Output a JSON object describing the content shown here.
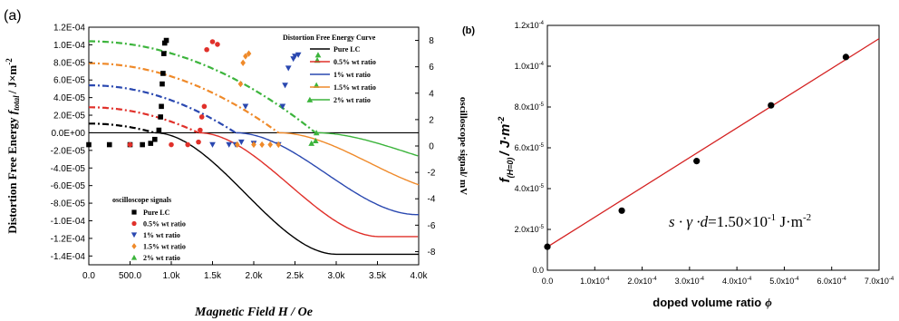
{
  "chart_data": [
    {
      "panel_label": "(a)",
      "type": "line",
      "xlabel": "Magnetic Field H / Oe",
      "ylabel_left_prefix": "Distortion Free Energy ",
      "ylabel_left_symbol": "f",
      "ylabel_left_sub": "total",
      "ylabel_left_unit": "/ J×m",
      "ylabel_left_exp": "-2",
      "ylabel_right": "oscilloscope signal/ mV",
      "xlim": [
        0,
        4000
      ],
      "ylim_left": [
        -0.00015,
        0.00012
      ],
      "ylim_right": [
        -9,
        9
      ],
      "x_ticks": [
        0,
        500,
        1000,
        1500,
        2000,
        2500,
        3000,
        3500,
        4000
      ],
      "x_tick_labels": [
        "0.0",
        "500.0",
        "1.0k",
        "1.5k",
        "2.0k",
        "2.5k",
        "3.0k",
        "3.5k",
        "4.0k"
      ],
      "y_left_ticks": [
        0.00012,
        0.0001,
        8e-05,
        6e-05,
        4e-05,
        2e-05,
        0,
        -2e-05,
        -4e-05,
        -6e-05,
        -8e-05,
        -0.0001,
        -0.00012,
        -0.00014
      ],
      "y_left_tick_labels": [
        "1.2E-04",
        "1.0E-04",
        "8.0E-05",
        "6.0E-05",
        "4.0E-05",
        "2.0E-05",
        "0.0E+00",
        "-2.0E-05",
        "-4.0E-05",
        "-6.0E-05",
        "-8.0E-05",
        "-1.0E-04",
        "-1.2E-04",
        "-1.4E-04"
      ],
      "y_right_ticks": [
        8,
        6,
        4,
        2,
        0,
        -2,
        -4,
        -6,
        -8
      ],
      "y_right_tick_labels": [
        "8",
        "6",
        "4",
        "2",
        "0",
        "-2",
        "-4",
        "-6",
        "-8"
      ],
      "curve_legend_title": "Distortion Free Energy Curve",
      "curve_legend": [
        "Pure LC",
        "0.5% wt ratio",
        "1%   wt ratio",
        "1.5% wt ratio",
        "2%   wt ratio"
      ],
      "scatter_legend_title": "oscilloscope signals",
      "scatter_legend": [
        "Pure LC",
        "0.5% wt ratio",
        "1%   wt ratio",
        "1.5% wt ratio",
        "2%   wt ratio"
      ],
      "series": [
        {
          "name": "Pure LC",
          "color": "#000000",
          "marker": "square",
          "f0": 1.05e-05,
          "hc": 800,
          "fmin": -0.000138,
          "points": [
            [
              0,
              0.1
            ],
            [
              250,
              0.1
            ],
            [
              500,
              0.1
            ],
            [
              650,
              0.1
            ],
            [
              750,
              0.2
            ],
            [
              800,
              0.5
            ],
            [
              850,
              1.2
            ],
            [
              870,
              2.2
            ],
            [
              880,
              3.0
            ],
            [
              890,
              4.7
            ],
            [
              900,
              5.5
            ],
            [
              910,
              7.0
            ],
            [
              920,
              7.8
            ],
            [
              940,
              8.0
            ]
          ]
        },
        {
          "name": "0.5% wt ratio",
          "color": "#e0302a",
          "marker": "circle",
          "f0": 2.9e-05,
          "hc": 1330,
          "fmin": -0.000118,
          "points": [
            [
              500,
              0.1
            ],
            [
              1000,
              0.1
            ],
            [
              1200,
              0.1
            ],
            [
              1330,
              0.3
            ],
            [
              1350,
              1.2
            ],
            [
              1370,
              2.2
            ],
            [
              1400,
              3.0
            ],
            [
              1430,
              7.3
            ],
            [
              1500,
              7.9
            ],
            [
              1560,
              7.7
            ]
          ]
        },
        {
          "name": "1%   wt ratio",
          "color": "#2a48b0",
          "marker": "triangle-down",
          "f0": 5.4e-05,
          "hc": 1780,
          "fmin": -9.3e-05,
          "points": [
            [
              1500,
              0.1
            ],
            [
              1700,
              0.1
            ],
            [
              1780,
              0.1
            ],
            [
              1850,
              0.3
            ],
            [
              1900,
              3.0
            ],
            [
              2000,
              0.2
            ],
            [
              2300,
              0.1
            ],
            [
              2350,
              3.0
            ],
            [
              2380,
              4.6
            ],
            [
              2420,
              5.9
            ],
            [
              2480,
              6.6
            ],
            [
              2500,
              6.8
            ],
            [
              2540,
              6.9
            ]
          ]
        },
        {
          "name": "1.5% wt ratio",
          "color": "#ef8a2a",
          "marker": "diamond",
          "f0": 7.9e-05,
          "hc": 2300,
          "fmin": -6.8e-05,
          "points": [
            [
              1800,
              0.1
            ],
            [
              2000,
              0.1
            ],
            [
              2100,
              0.1
            ],
            [
              2200,
              0.1
            ],
            [
              2300,
              0.1
            ],
            [
              1840,
              4.7
            ],
            [
              1870,
              6.3
            ],
            [
              1900,
              6.8
            ],
            [
              1940,
              7.0
            ]
          ]
        },
        {
          "name": "2%   wt ratio",
          "color": "#3cb43c",
          "marker": "triangle-up",
          "f0": 0.000104,
          "hc": 2750,
          "fmin": -4.4e-05,
          "points": [
            [
              2700,
              0.2
            ],
            [
              2750,
              0.4
            ],
            [
              2680,
              3.5
            ],
            [
              2760,
              1.0
            ],
            [
              2760,
              4.6
            ],
            [
              2770,
              6.5
            ],
            [
              2780,
              6.9
            ]
          ]
        }
      ]
    },
    {
      "panel_label": "(b)",
      "type": "scatter",
      "ylabel_symbol": "f",
      "ylabel_sub": "(H=0)",
      "ylabel_unit": "/ J·m",
      "ylabel_exp": "-2",
      "xlabel": "doped volume ratio",
      "xlabel_symbol": "ϕ",
      "xlim": [
        0,
        0.0007
      ],
      "ylim": [
        0,
        0.00012
      ],
      "x_ticks": [
        0,
        0.0001,
        0.0002,
        0.0003,
        0.0004,
        0.0005,
        0.0006,
        0.0007
      ],
      "x_tick_labels": [
        [
          "0.0",
          ""
        ],
        [
          "1.0x10",
          "-4"
        ],
        [
          "2.0x10",
          "-4"
        ],
        [
          "3.0x10",
          "-4"
        ],
        [
          "4.0x10",
          "-4"
        ],
        [
          "5.0x10",
          "-4"
        ],
        [
          "6.0x10",
          "-4"
        ],
        [
          "7.0x10",
          "-4"
        ]
      ],
      "y_ticks": [
        0,
        2e-05,
        4e-05,
        6e-05,
        8e-05,
        0.0001,
        0.00012
      ],
      "y_tick_labels": [
        [
          "0.0",
          ""
        ],
        [
          "2.0x10",
          "-5"
        ],
        [
          "4.0x10",
          "-5"
        ],
        [
          "6.0x10",
          "-5"
        ],
        [
          "8.0x10",
          "-5"
        ],
        [
          "1.0x10",
          "-4"
        ],
        [
          "1.2x10",
          "-4"
        ]
      ],
      "points": [
        [
          0.0,
          1.15e-05
        ],
        [
          0.000157,
          2.92e-05
        ],
        [
          0.000315,
          5.35e-05
        ],
        [
          0.000472,
          8.08e-05
        ],
        [
          0.00063,
          0.0001045
        ]
      ],
      "fit": {
        "x": [
          -2e-05,
          0.0007
        ],
        "y": [
          8.5e-06,
          0.0001135
        ],
        "color": "#d42020"
      },
      "annotation_prefix": "s · γ ·d",
      "annotation_value": "=1.50×10",
      "annotation_exp": "-1",
      "annotation_unit": " J·m",
      "annotation_unit_exp": "-2",
      "marker_color": "#000000"
    }
  ]
}
